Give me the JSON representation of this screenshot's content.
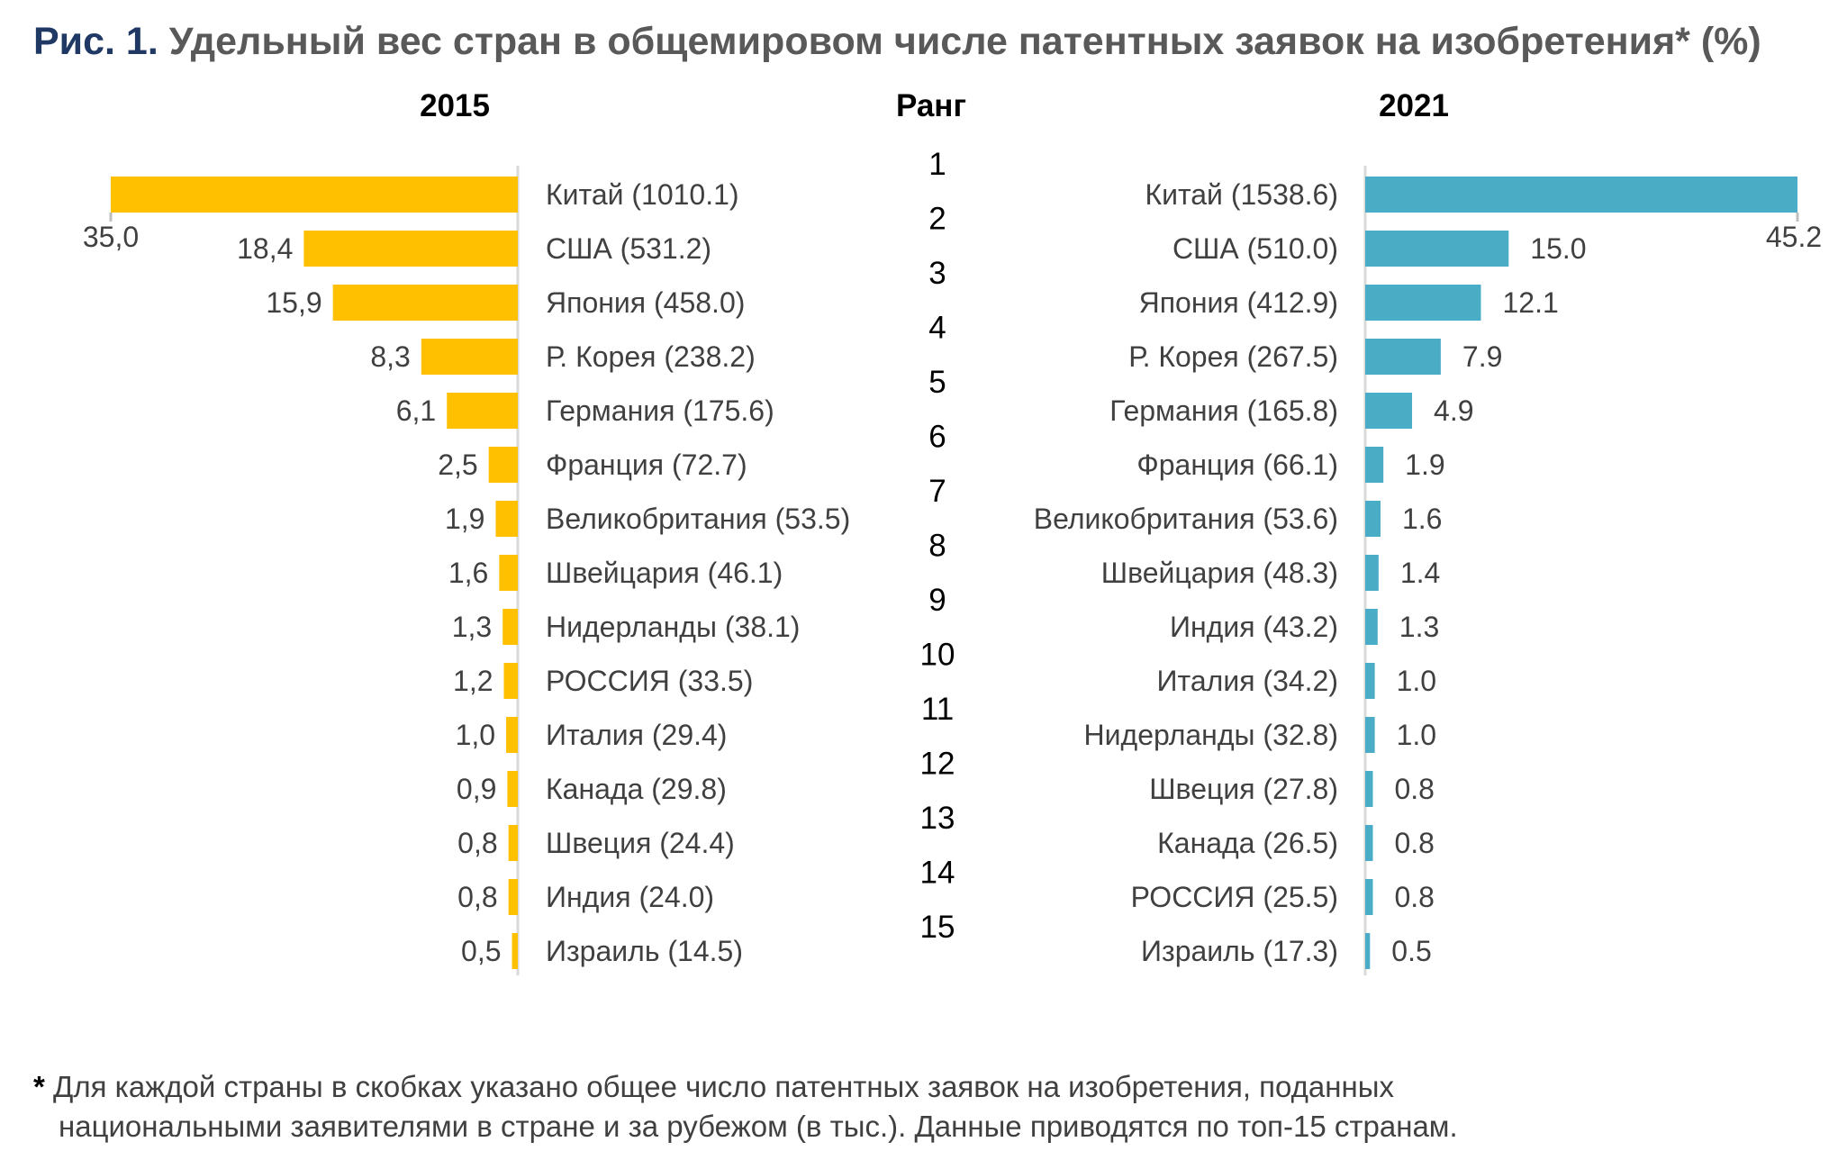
{
  "title": {
    "prefix": "Рис. 1.",
    "text": "Удельный вес стран в общемировом числе патентных заявок на изобретения* (%)"
  },
  "headers": {
    "left": "2015",
    "center": "Ранг",
    "right": "2021"
  },
  "chart_data": [
    {
      "type": "bar",
      "orientation": "horizontal",
      "series_name": "2015",
      "color": "#FFC000",
      "categories": [
        "Китай (1010.1)",
        "США (531.2)",
        "Япония (458.0)",
        "Р. Корея (238.2)",
        "Германия (175.6)",
        "Франция (72.7)",
        "Великобритания (53.5)",
        "Швейцария (46.1)",
        "Нидерланды (38.1)",
        "РОССИЯ (33.5)",
        "Италия (29.4)",
        "Канада (29.8)",
        "Швеция (24.4)",
        "Индия (24.0)",
        "Израиль (14.5)"
      ],
      "values": [
        35.0,
        18.4,
        15.9,
        8.3,
        6.1,
        2.5,
        1.9,
        1.6,
        1.3,
        1.2,
        1.0,
        0.9,
        0.8,
        0.8,
        0.5
      ],
      "value_labels": [
        "35,0",
        "18,4",
        "15,9",
        "8,3",
        "6,1",
        "2,5",
        "1,9",
        "1,6",
        "1,3",
        "1,2",
        "1,0",
        "0,9",
        "0,8",
        "0,8",
        "0,5"
      ],
      "direction": "right-to-left"
    },
    {
      "type": "bar",
      "orientation": "horizontal",
      "series_name": "2021",
      "color": "#4BACC6",
      "categories": [
        "Китай (1538.6)",
        "США (510.0)",
        "Япония (412.9)",
        "Р. Корея (267.5)",
        "Германия (165.8)",
        "Франция (66.1)",
        "Великобритания (53.6)",
        "Швейцария (48.3)",
        "Индия (43.2)",
        "Италия (34.2)",
        "Нидерланды (32.8)",
        "Швеция (27.8)",
        "Канада (26.5)",
        "РОССИЯ (25.5)",
        "Израиль (17.3)"
      ],
      "values": [
        45.2,
        15.0,
        12.1,
        7.9,
        4.9,
        1.9,
        1.6,
        1.4,
        1.3,
        1.0,
        1.0,
        0.8,
        0.8,
        0.8,
        0.5
      ],
      "value_labels": [
        "45.2",
        "15.0",
        "12.1",
        "7.9",
        "4.9",
        "1.9",
        "1.6",
        "1.4",
        "1.3",
        "1.0",
        "1.0",
        "0.8",
        "0.8",
        "0.8",
        "0.5"
      ],
      "direction": "left-to-right"
    }
  ],
  "ranks": [
    "1",
    "2",
    "3",
    "4",
    "5",
    "6",
    "7",
    "8",
    "9",
    "10",
    "11",
    "12",
    "13",
    "14",
    "15"
  ],
  "footnote": {
    "star": "*",
    "line1": "Для каждой страны в скобках указано общее число патентных заявок на изобретения, поданных",
    "line2": "национальными заявителями в стране и за рубежом (в тыс.). Данные приводятся по топ-15 странам."
  }
}
